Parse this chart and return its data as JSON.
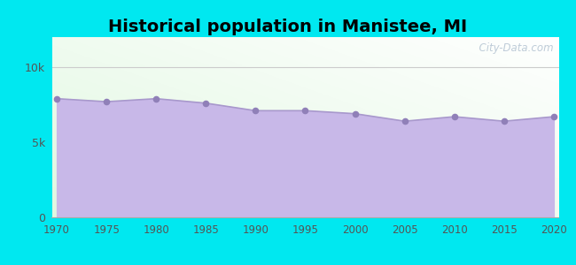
{
  "title": "Historical population in Manistee, MI",
  "years": [
    1970,
    1975,
    1980,
    1985,
    1990,
    1995,
    2000,
    2005,
    2010,
    2015,
    2020
  ],
  "population": [
    7900,
    7700,
    7900,
    7600,
    7100,
    7100,
    6900,
    6400,
    6700,
    6400,
    6700
  ],
  "line_color": "#a898cc",
  "fill_color": "#c8b8e8",
  "fill_alpha": 1.0,
  "marker_color": "#9080b8",
  "outer_background": "#00e8f0",
  "ylim": [
    0,
    12000
  ],
  "yticks": [
    0,
    5000,
    10000
  ],
  "ytick_labels": [
    "0",
    "5k",
    "10k"
  ],
  "title_fontsize": 14,
  "watermark": "  City-Data.com"
}
